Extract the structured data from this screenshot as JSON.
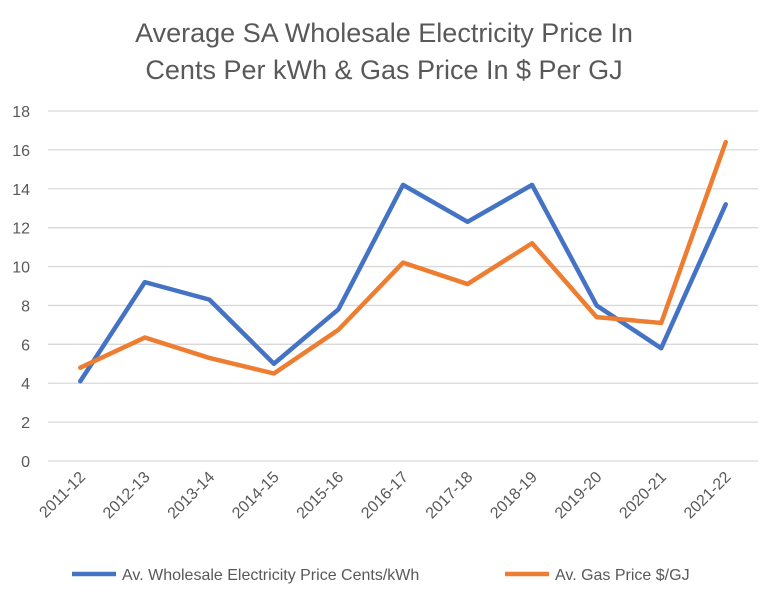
{
  "chart_data": {
    "type": "line",
    "title": [
      "Average SA Wholesale Electricity Price In",
      "Cents Per kWh & Gas Price In $ Per GJ"
    ],
    "xlabel": "",
    "ylabel": "",
    "categories": [
      "2011-12",
      "2012-13",
      "2013-14",
      "2014-15",
      "2015-16",
      "2016-17",
      "2017-18",
      "2018-19",
      "2019-20",
      "2020-21",
      "2021-22"
    ],
    "ylim": [
      0,
      18
    ],
    "yticks": [
      "0",
      "2",
      "4",
      "6",
      "8",
      "10",
      "12",
      "14",
      "16",
      "18"
    ],
    "grid": true,
    "legend_position": "bottom",
    "series": [
      {
        "name": "Av. Wholesale Electricity Price Cents/kWh",
        "color": "#4472C4",
        "values": [
          4.1,
          9.2,
          8.3,
          5.0,
          7.8,
          14.2,
          12.3,
          14.2,
          8.0,
          5.8,
          13.2
        ]
      },
      {
        "name": "Av. Gas Price $/GJ",
        "color": "#ED7D31",
        "values": [
          4.8,
          6.35,
          5.3,
          4.5,
          6.75,
          10.2,
          9.1,
          11.2,
          7.4,
          7.1,
          16.4
        ]
      }
    ]
  }
}
